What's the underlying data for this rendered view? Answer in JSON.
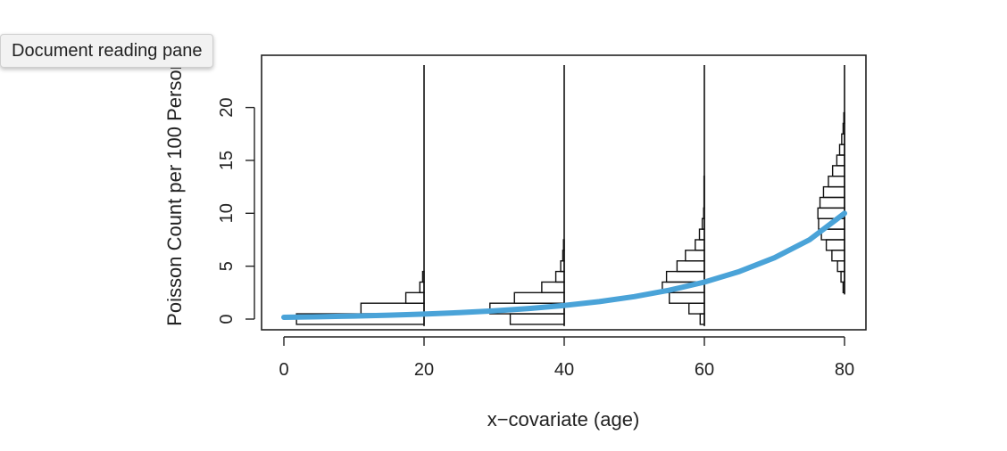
{
  "overlay": {
    "tooltip_text": "Document reading pane"
  },
  "chart_data": {
    "type": "line",
    "title": "",
    "xlabel": "x−covariate (age)",
    "ylabel": "Poisson Count per 100 Person",
    "xlim": [
      -4,
      83
    ],
    "ylim": [
      -1,
      25
    ],
    "x_ticks": [
      0,
      20,
      40,
      60,
      80
    ],
    "y_ticks": [
      0,
      5,
      10,
      15,
      20
    ],
    "grid": false,
    "curve_color": "#4aa3d8",
    "series": [
      {
        "x": [
          0,
          5,
          10,
          15,
          20,
          25,
          30,
          35,
          40,
          45,
          50,
          55,
          60,
          65,
          70,
          75,
          80
        ],
        "y": [
          0.17,
          0.22,
          0.29,
          0.37,
          0.47,
          0.61,
          0.78,
          1.0,
          1.29,
          1.65,
          2.12,
          2.73,
          3.5,
          4.5,
          5.8,
          7.5,
          10.0
        ]
      }
    ],
    "histograms": [
      {
        "x": 20,
        "bins": [
          {
            "y0": -0.5,
            "y1": 0.5,
            "w": 18.2
          },
          {
            "y0": 0.5,
            "y1": 1.5,
            "w": 9.0
          },
          {
            "y0": 1.5,
            "y1": 2.5,
            "w": 2.6
          },
          {
            "y0": 2.5,
            "y1": 3.5,
            "w": 0.6
          },
          {
            "y0": 3.5,
            "y1": 4.5,
            "w": 0.2
          }
        ]
      },
      {
        "x": 40,
        "bins": [
          {
            "y0": -0.5,
            "y1": 0.5,
            "w": 7.7
          },
          {
            "y0": 0.5,
            "y1": 1.5,
            "w": 10.6
          },
          {
            "y0": 1.5,
            "y1": 2.5,
            "w": 7.1
          },
          {
            "y0": 2.5,
            "y1": 3.5,
            "w": 3.2
          },
          {
            "y0": 3.5,
            "y1": 4.5,
            "w": 1.2
          },
          {
            "y0": 4.5,
            "y1": 5.5,
            "w": 0.5
          },
          {
            "y0": 5.5,
            "y1": 6.5,
            "w": 0.2
          },
          {
            "y0": 6.5,
            "y1": 7.5,
            "w": 0.1
          }
        ]
      },
      {
        "x": 60,
        "bins": [
          {
            "y0": -0.5,
            "y1": 0.5,
            "w": 0.6
          },
          {
            "y0": 0.5,
            "y1": 1.5,
            "w": 2.2
          },
          {
            "y0": 1.5,
            "y1": 2.5,
            "w": 5.0
          },
          {
            "y0": 2.5,
            "y1": 3.5,
            "w": 6.0
          },
          {
            "y0": 3.5,
            "y1": 4.5,
            "w": 5.4
          },
          {
            "y0": 4.5,
            "y1": 5.5,
            "w": 3.9
          },
          {
            "y0": 5.5,
            "y1": 6.5,
            "w": 2.7
          },
          {
            "y0": 6.5,
            "y1": 7.5,
            "w": 1.3
          },
          {
            "y0": 7.5,
            "y1": 8.5,
            "w": 0.7
          },
          {
            "y0": 8.5,
            "y1": 9.5,
            "w": 0.3
          },
          {
            "y0": 9.5,
            "y1": 10.5,
            "w": 0.1
          },
          {
            "y0": 10.5,
            "y1": 13.5,
            "w": 0.05
          }
        ]
      },
      {
        "x": 80,
        "bins": [
          {
            "y0": 2.5,
            "y1": 3.5,
            "w": 0.2
          },
          {
            "y0": 3.5,
            "y1": 4.5,
            "w": 0.5
          },
          {
            "y0": 4.5,
            "y1": 5.5,
            "w": 1.0
          },
          {
            "y0": 5.5,
            "y1": 6.5,
            "w": 1.8
          },
          {
            "y0": 6.5,
            "y1": 7.5,
            "w": 2.6
          },
          {
            "y0": 7.5,
            "y1": 8.5,
            "w": 3.3
          },
          {
            "y0": 8.5,
            "y1": 9.5,
            "w": 3.7
          },
          {
            "y0": 9.5,
            "y1": 10.5,
            "w": 3.8
          },
          {
            "y0": 10.5,
            "y1": 11.5,
            "w": 3.5
          },
          {
            "y0": 11.5,
            "y1": 12.5,
            "w": 3.0
          },
          {
            "y0": 12.5,
            "y1": 13.5,
            "w": 2.3
          },
          {
            "y0": 13.5,
            "y1": 14.5,
            "w": 1.7
          },
          {
            "y0": 14.5,
            "y1": 15.5,
            "w": 1.1
          },
          {
            "y0": 15.5,
            "y1": 16.5,
            "w": 0.7
          },
          {
            "y0": 16.5,
            "y1": 17.5,
            "w": 0.4
          },
          {
            "y0": 17.5,
            "y1": 18.5,
            "w": 0.2
          },
          {
            "y0": 18.5,
            "y1": 19.5,
            "w": 0.1
          }
        ]
      }
    ]
  }
}
